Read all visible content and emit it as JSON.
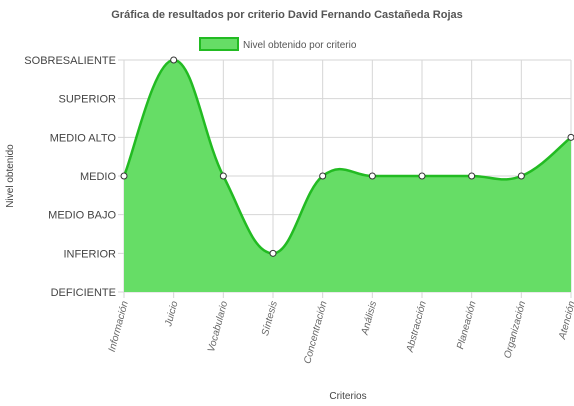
{
  "chart_data": {
    "type": "area",
    "title": "Gráfica de resultados por criterio David Fernando Castañeda Rojas",
    "xlabel": "Criterios",
    "ylabel": "Nivel obtenido",
    "legend": {
      "label": "Nivel obtenido por criterio",
      "placement": "top"
    },
    "y_levels": [
      "DEFICIENTE",
      "INFERIOR",
      "MEDIO BAJO",
      "MEDIO",
      "MEDIO ALTO",
      "SUPERIOR",
      "SOBRESALIENTE"
    ],
    "categories": [
      "Información",
      "Juicio",
      "Vocabulario",
      "Síntesis",
      "Concentración",
      "Análisis",
      "Abstracción",
      "Planeación",
      "Organización",
      "Atención"
    ],
    "series": [
      {
        "name": "Nivel obtenido por criterio",
        "values": [
          "MEDIO",
          "SOBRESALIENTE",
          "MEDIO",
          "INFERIOR",
          "MEDIO",
          "MEDIO",
          "MEDIO",
          "MEDIO",
          "MEDIO",
          "MEDIO ALTO"
        ],
        "color": "#66dd66",
        "line_color": "#22bb22"
      }
    ],
    "grid": true,
    "curve": "smooth"
  }
}
